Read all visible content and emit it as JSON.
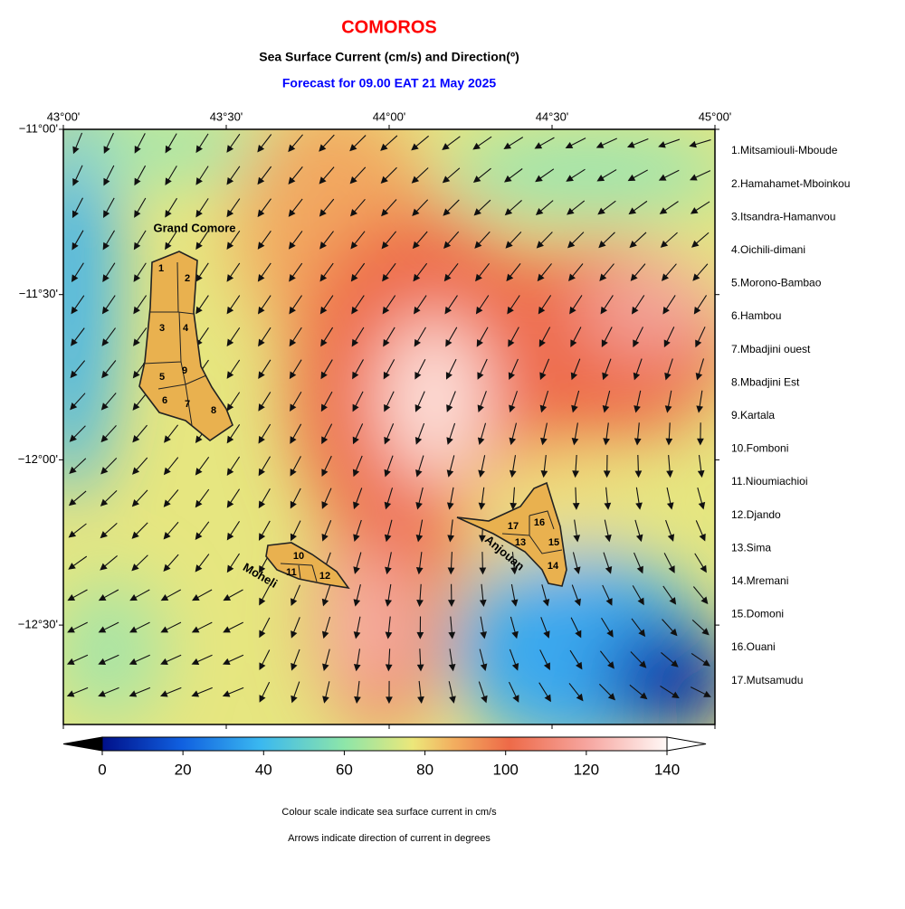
{
  "title": "COMOROS",
  "subtitle": "Sea Surface Current (cm/s) and Direction(º)",
  "forecast": "Forecast for  09.00 EAT 21 May 2025",
  "lon_labels": [
    "43°00'",
    "43°30'",
    "44°00'",
    "44°30'",
    "45°00'"
  ],
  "lat_labels": [
    "−11°00'",
    "−11°30'",
    "−12°00'",
    "−12°30'"
  ],
  "islands": [
    "Grand Comore",
    "Moheli",
    "Anjouan"
  ],
  "map_labels": [
    1,
    2,
    3,
    4,
    5,
    6,
    7,
    8,
    9,
    10,
    11,
    12,
    13,
    14,
    15,
    16,
    17
  ],
  "regions": [
    "1.Mitsamiouli-Mboude",
    "2.Hamahamet-Mboinkou",
    "3.Itsandra-Hamanvou",
    "4.Oichili-dimani",
    "5.Morono-Bambao",
    "6.Hambou",
    "7.Mbadjini ouest",
    "8.Mbadjini Est",
    "9.Kartala",
    "10.Fomboni",
    "11.Nioumiachioi",
    "12.Djando",
    "13.Sima",
    "14.Mremani",
    "15.Domoni",
    "16.Ouani",
    "17.Mutsamudu"
  ],
  "colorbar": {
    "lim": [
      0,
      140
    ],
    "ticks": [
      0,
      20,
      40,
      60,
      80,
      100,
      120,
      140
    ]
  },
  "notes": [
    "Colour scale indicate sea surface current in cm/s",
    "Arrows indicate direction of current in degrees"
  ]
}
